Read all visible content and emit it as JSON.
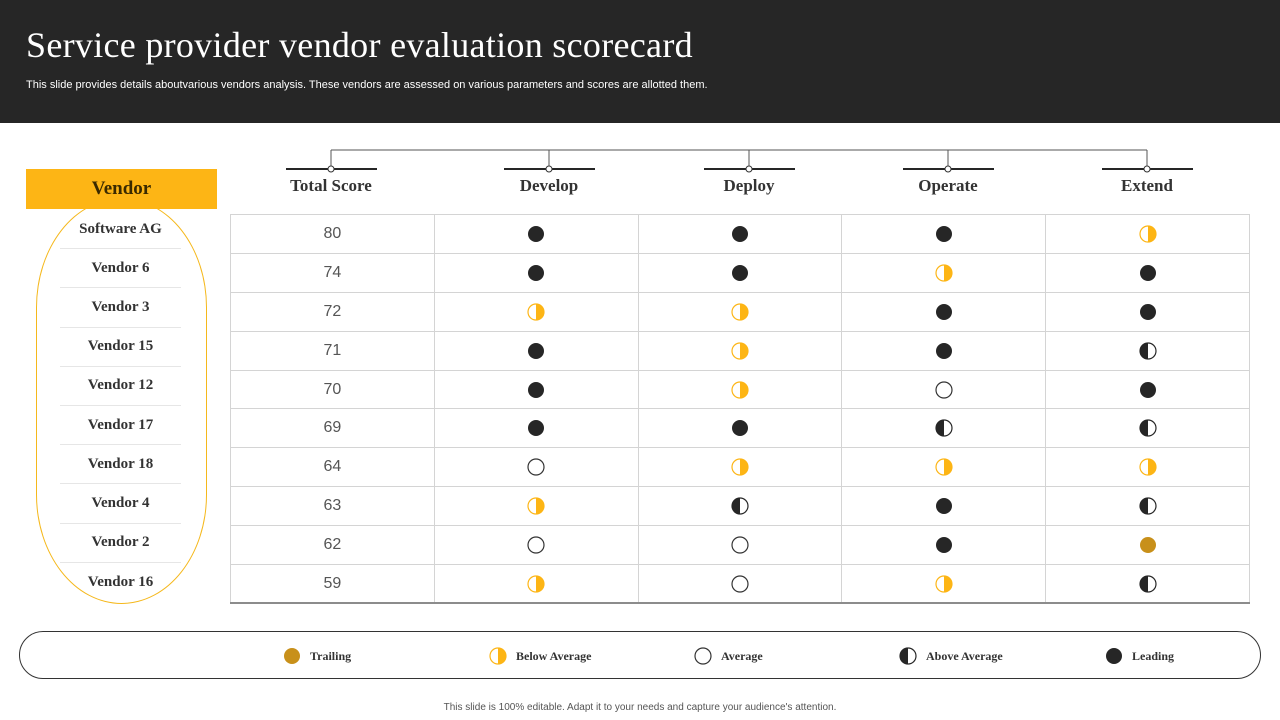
{
  "header": {
    "title": "Service provider vendor evaluation scorecard",
    "subtitle": "This slide provides details aboutvarious vendors analysis. These vendors are assessed on various parameters and scores are allotted them."
  },
  "vendor_column": {
    "label": "Vendor",
    "items": [
      "Software AG",
      "Vendor 6",
      "Vendor 3",
      "Vendor 15",
      "Vendor 12",
      "Vendor 17",
      "Vendor 18",
      "Vendor 4",
      "Vendor 2",
      "Vendor 16"
    ]
  },
  "columns": [
    "Total Score",
    "Develop",
    "Deploy",
    "Operate",
    "Extend"
  ],
  "rows": [
    {
      "score": "80",
      "ratings": [
        "leading",
        "leading",
        "leading",
        "below-average"
      ]
    },
    {
      "score": "74",
      "ratings": [
        "leading",
        "leading",
        "below-average",
        "leading"
      ]
    },
    {
      "score": "72",
      "ratings": [
        "below-average",
        "below-average",
        "leading",
        "leading"
      ]
    },
    {
      "score": "71",
      "ratings": [
        "leading",
        "below-average",
        "leading",
        "above-average"
      ]
    },
    {
      "score": "70",
      "ratings": [
        "leading",
        "below-average",
        "average",
        "leading"
      ]
    },
    {
      "score": "69",
      "ratings": [
        "leading",
        "leading",
        "above-average",
        "above-average"
      ]
    },
    {
      "score": "64",
      "ratings": [
        "average",
        "below-average",
        "below-average",
        "below-average"
      ]
    },
    {
      "score": "63",
      "ratings": [
        "below-average",
        "above-average",
        "leading",
        "above-average"
      ]
    },
    {
      "score": "62",
      "ratings": [
        "average",
        "average",
        "leading",
        "trailing"
      ]
    },
    {
      "score": "59",
      "ratings": [
        "below-average",
        "average",
        "below-average",
        "above-average"
      ]
    }
  ],
  "legend": [
    {
      "key": "trailing",
      "label": "Trailing"
    },
    {
      "key": "below-average",
      "label": "Below Average"
    },
    {
      "key": "average",
      "label": "Average"
    },
    {
      "key": "above-average",
      "label": "Above  Average"
    },
    {
      "key": "leading",
      "label": "Leading"
    }
  ],
  "colors": {
    "header_bg": "#262626",
    "accent": "#FDB515",
    "trailing": "#C8901A",
    "leading": "#262626"
  },
  "footer": "This slide is 100% editable. Adapt it to your needs and capture your audience's attention."
}
